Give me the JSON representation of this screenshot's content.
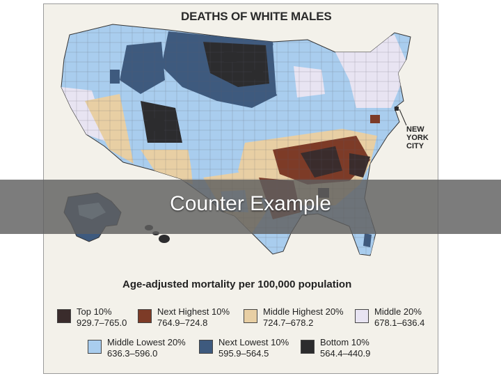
{
  "map": {
    "title": "DEATHS OF WHITE MALES",
    "city_label": "NEW\nYORK\nCITY"
  },
  "banner": {
    "text": "Counter Example"
  },
  "legend": {
    "title": "Age-adjusted mortality per 100,000 population",
    "items": [
      {
        "label": "Top 10%",
        "range": "929.7–765.0",
        "color": "#3a2c2c"
      },
      {
        "label": "Next Highest 10%",
        "range": "764.9–724.8",
        "color": "#7d3b27"
      },
      {
        "label": "Middle Highest 20%",
        "range": "724.7–678.2",
        "color": "#e8cfa4"
      },
      {
        "label": "Middle 20%",
        "range": "678.1–636.4",
        "color": "#e8e4f2"
      },
      {
        "label": "Middle Lowest 20%",
        "range": "636.3–596.0",
        "color": "#a9cdee"
      },
      {
        "label": "Next Lowest 10%",
        "range": "595.9–564.5",
        "color": "#3e5a7e"
      },
      {
        "label": "Bottom 10%",
        "range": "564.4–440.9",
        "color": "#2c2c2e"
      }
    ]
  }
}
